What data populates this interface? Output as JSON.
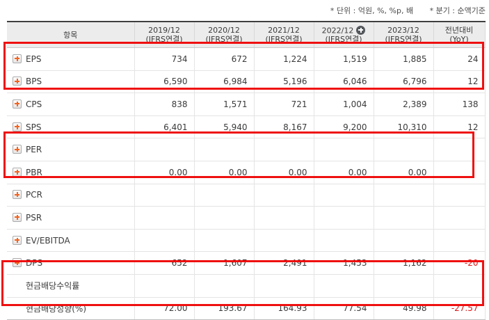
{
  "meta": {
    "unit_note": "* 단위 : 억원, %, %p, 배",
    "period_note": "* 분기 : 순액기준"
  },
  "table": {
    "header": {
      "item_label": "항목",
      "yoy_line1": "전년대비",
      "yoy_line2": "(YoY)",
      "periods": [
        {
          "line1": "2019/12",
          "line2": "(IFRS연결)",
          "has_plus": false
        },
        {
          "line1": "2020/12",
          "line2": "(IFRS연결)",
          "has_plus": false
        },
        {
          "line1": "2021/12",
          "line2": "(IFRS연결)",
          "has_plus": false
        },
        {
          "line1": "2022/12",
          "line2": "(IFRS연결)",
          "has_plus": true
        },
        {
          "line1": "2023/12",
          "line2": "(IFRS연결)",
          "has_plus": false
        }
      ]
    },
    "rows": [
      {
        "label": "EPS",
        "expandable": true,
        "values": [
          "734",
          "672",
          "1,224",
          "1,519",
          "1,885",
          "24"
        ]
      },
      {
        "label": "BPS",
        "expandable": true,
        "values": [
          "6,590",
          "6,984",
          "5,196",
          "6,046",
          "6,796",
          "12"
        ]
      },
      {
        "label": "CPS",
        "expandable": true,
        "values": [
          "838",
          "1,571",
          "721",
          "1,004",
          "2,389",
          "138"
        ]
      },
      {
        "label": "SPS",
        "expandable": true,
        "values": [
          "6,401",
          "5,940",
          "8,167",
          "9,200",
          "10,310",
          "12"
        ]
      },
      {
        "label": "PER",
        "expandable": true,
        "values": [
          "",
          "",
          "",
          "",
          "",
          ""
        ]
      },
      {
        "label": "PBR",
        "expandable": true,
        "values": [
          "0.00",
          "0.00",
          "0.00",
          "0.00",
          "0.00",
          ""
        ]
      },
      {
        "label": "PCR",
        "expandable": true,
        "values": [
          "",
          "",
          "",
          "",
          "",
          ""
        ]
      },
      {
        "label": "PSR",
        "expandable": true,
        "values": [
          "",
          "",
          "",
          "",
          "",
          ""
        ]
      },
      {
        "label": "EV/EBITDA",
        "expandable": true,
        "values": [
          "",
          "",
          "",
          "",
          "",
          ""
        ]
      },
      {
        "label": "DPS",
        "expandable": true,
        "values": [
          "652",
          "1,607",
          "2,491",
          "1,453",
          "1,162",
          "-20"
        ]
      },
      {
        "label": "현금배당수익률",
        "expandable": false,
        "values": [
          "",
          "",
          "",
          "",
          "",
          ""
        ]
      },
      {
        "label": "현금배당성향(%)",
        "expandable": false,
        "values": [
          "72.00",
          "193.67",
          "164.93",
          "77.54",
          "49.98",
          "-27.57"
        ]
      }
    ]
  },
  "colors": {
    "expand_plus_orange": "#f26522",
    "header_plus_circle": "#54585c",
    "negative_value_red": "#d91a1a",
    "highlight_box_red": "#ef1010",
    "header_background": "#ececec",
    "header_top_border": "#3f3f3f"
  },
  "icons": {
    "row_expand": "plus-square-icon",
    "header_add_period": "plus-circle-icon"
  }
}
